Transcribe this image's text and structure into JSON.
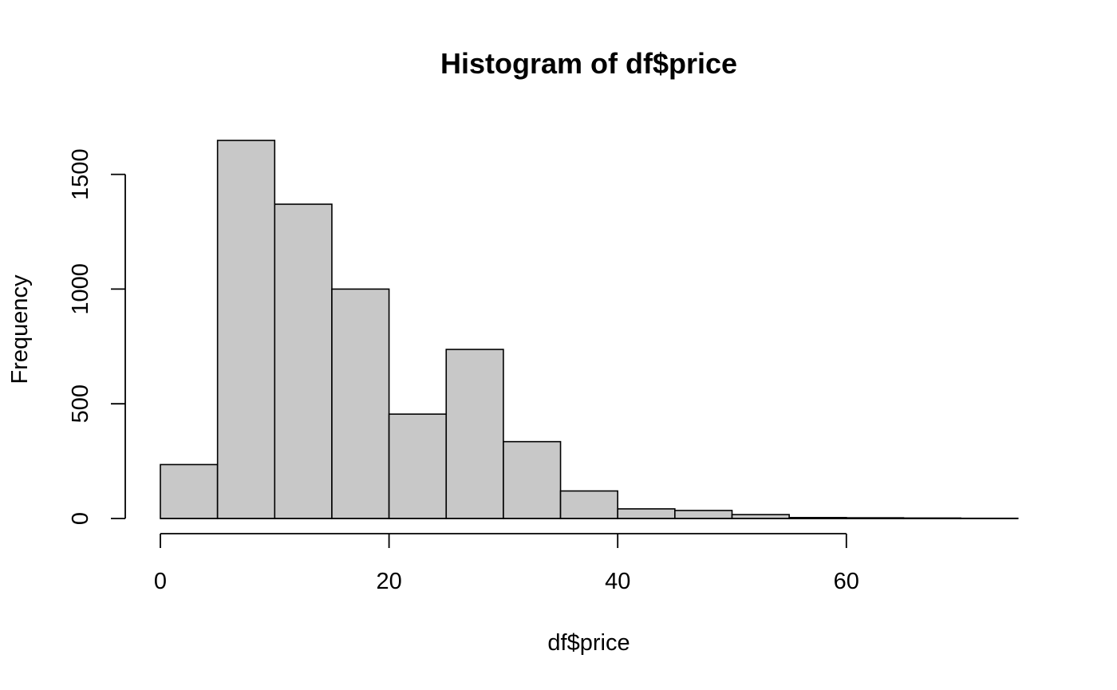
{
  "chart_data": {
    "type": "bar",
    "title": "Histogram of df$price",
    "xlabel": "df$price",
    "ylabel": "Frequency",
    "bins": [
      {
        "x0": 0,
        "x1": 5,
        "count": 235
      },
      {
        "x0": 5,
        "x1": 10,
        "count": 1648
      },
      {
        "x0": 10,
        "x1": 15,
        "count": 1370
      },
      {
        "x0": 15,
        "x1": 20,
        "count": 1000
      },
      {
        "x0": 20,
        "x1": 25,
        "count": 455
      },
      {
        "x0": 25,
        "x1": 30,
        "count": 737
      },
      {
        "x0": 30,
        "x1": 35,
        "count": 335
      },
      {
        "x0": 35,
        "x1": 40,
        "count": 120
      },
      {
        "x0": 40,
        "x1": 45,
        "count": 42
      },
      {
        "x0": 45,
        "x1": 50,
        "count": 35
      },
      {
        "x0": 50,
        "x1": 55,
        "count": 17
      },
      {
        "x0": 55,
        "x1": 60,
        "count": 4
      },
      {
        "x0": 60,
        "x1": 65,
        "count": 3
      },
      {
        "x0": 65,
        "x1": 70,
        "count": 2
      },
      {
        "x0": 70,
        "x1": 75,
        "count": 1
      }
    ],
    "xticks": [
      "0",
      "20",
      "40",
      "60"
    ],
    "xtick_values": [
      0,
      20,
      40,
      60
    ],
    "yticks": [
      "0",
      "500",
      "1000",
      "1500"
    ],
    "ytick_values": [
      0,
      500,
      1000,
      1500
    ],
    "xlim": [
      0,
      75
    ],
    "ylim": [
      0,
      1648
    ],
    "grid": false,
    "legend": "none",
    "bar_color": "#c8c8c8"
  }
}
